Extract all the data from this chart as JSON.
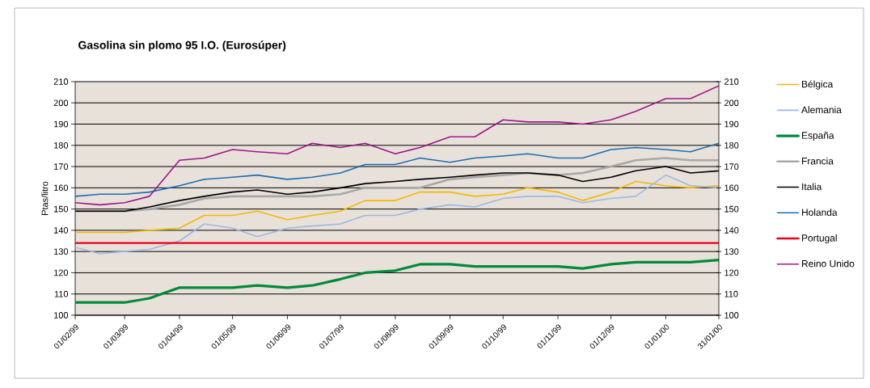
{
  "chart_data": {
    "type": "line",
    "title": "Gasolina sin plomo 95 I.O. (Eurosúper)",
    "ylabel": "Ptas/litro",
    "x": [
      "1999-02-01",
      "1999-02-15",
      "1999-03-01",
      "1999-03-15",
      "1999-04-01",
      "1999-04-15",
      "1999-05-01",
      "1999-05-15",
      "1999-06-01",
      "1999-06-15",
      "1999-07-01",
      "1999-07-15",
      "1999-08-01",
      "1999-08-15",
      "1999-09-01",
      "1999-09-15",
      "1999-10-01",
      "1999-10-15",
      "1999-11-01",
      "1999-11-15",
      "1999-12-01",
      "1999-12-15",
      "2000-01-01",
      "2000-01-15",
      "2000-01-31"
    ],
    "series": [
      {
        "name": "Bélgica",
        "color": "#f5b800",
        "values": [
          139,
          139,
          139,
          140,
          141,
          147,
          147,
          149,
          145,
          147,
          149,
          154,
          154,
          158,
          158,
          156,
          157,
          160,
          158,
          154,
          158,
          163,
          161,
          160,
          161
        ]
      },
      {
        "name": "Alemania",
        "color": "#9db8e0",
        "values": [
          132,
          129,
          130,
          131,
          135,
          143,
          141,
          137,
          141,
          142,
          143,
          147,
          147,
          150,
          152,
          151,
          155,
          156,
          156,
          153,
          155,
          156,
          166,
          161,
          160
        ]
      },
      {
        "name": "España",
        "color": "#008a3a",
        "values": [
          106,
          106,
          106,
          108,
          113,
          113,
          113,
          114,
          113,
          114,
          117,
          120,
          121,
          124,
          124,
          123,
          123,
          123,
          123,
          122,
          124,
          125,
          125,
          125,
          126
        ]
      },
      {
        "name": "Francia",
        "color": "#a8a8a8",
        "values": [
          149,
          149,
          149,
          150,
          152,
          155,
          156,
          156,
          156,
          156,
          157,
          160,
          160,
          160,
          164,
          165,
          166,
          167,
          166,
          167,
          170,
          173,
          174,
          173,
          173
        ]
      },
      {
        "name": "Italia",
        "color": "#000000",
        "values": [
          149,
          149,
          149,
          151,
          154,
          156,
          158,
          159,
          157,
          158,
          160,
          162,
          163,
          164,
          165,
          166,
          167,
          167,
          166,
          163,
          165,
          168,
          170,
          167,
          168
        ]
      },
      {
        "name": "Holanda",
        "color": "#1a6fb5",
        "values": [
          156,
          157,
          157,
          158,
          161,
          164,
          165,
          166,
          164,
          165,
          167,
          171,
          171,
          174,
          172,
          174,
          175,
          176,
          174,
          174,
          178,
          179,
          178,
          177,
          181
        ]
      },
      {
        "name": "Portugal",
        "color": "#e8001c",
        "values": [
          134,
          134,
          134,
          134,
          134,
          134,
          134,
          134,
          134,
          134,
          134,
          134,
          134,
          134,
          134,
          134,
          134,
          134,
          134,
          134,
          134,
          134,
          134,
          134,
          134
        ]
      },
      {
        "name": "Reino Unido",
        "color": "#a0168c",
        "values": [
          153,
          152,
          153,
          156,
          173,
          174,
          178,
          177,
          176,
          181,
          179,
          181,
          176,
          179,
          184,
          184,
          192,
          191,
          191,
          190,
          192,
          196,
          202,
          202,
          208
        ]
      }
    ],
    "xlim": [
      "1999-02-01",
      "2000-01-31"
    ],
    "xticks": [
      {
        "value": "1999-02-01",
        "label": "01/02/99"
      },
      {
        "value": "1999-03-01",
        "label": "01/03/99"
      },
      {
        "value": "1999-04-01",
        "label": "01/04/99"
      },
      {
        "value": "1999-05-01",
        "label": "01/05/99"
      },
      {
        "value": "1999-06-01",
        "label": "01/06/99"
      },
      {
        "value": "1999-07-01",
        "label": "01/07/99"
      },
      {
        "value": "1999-08-01",
        "label": "01/08/99"
      },
      {
        "value": "1999-09-01",
        "label": "01/09/99"
      },
      {
        "value": "1999-10-01",
        "label": "01/10/99"
      },
      {
        "value": "1999-11-01",
        "label": "01/11/99"
      },
      {
        "value": "1999-12-01",
        "label": "01/12/99"
      },
      {
        "value": "2000-01-01",
        "label": "01/01/00"
      },
      {
        "value": "2000-01-31",
        "label": "31/01/00"
      }
    ],
    "ylim": [
      100,
      210
    ],
    "yticks": [
      100,
      110,
      120,
      130,
      140,
      150,
      160,
      170,
      180,
      190,
      200,
      210
    ],
    "y2lim": [
      100,
      210
    ],
    "y2ticks": [
      100,
      110,
      120,
      130,
      140,
      150,
      160,
      170,
      180,
      190,
      200,
      210
    ],
    "grid": "y",
    "legend": "right",
    "marker": "none",
    "line_style": "solid"
  }
}
